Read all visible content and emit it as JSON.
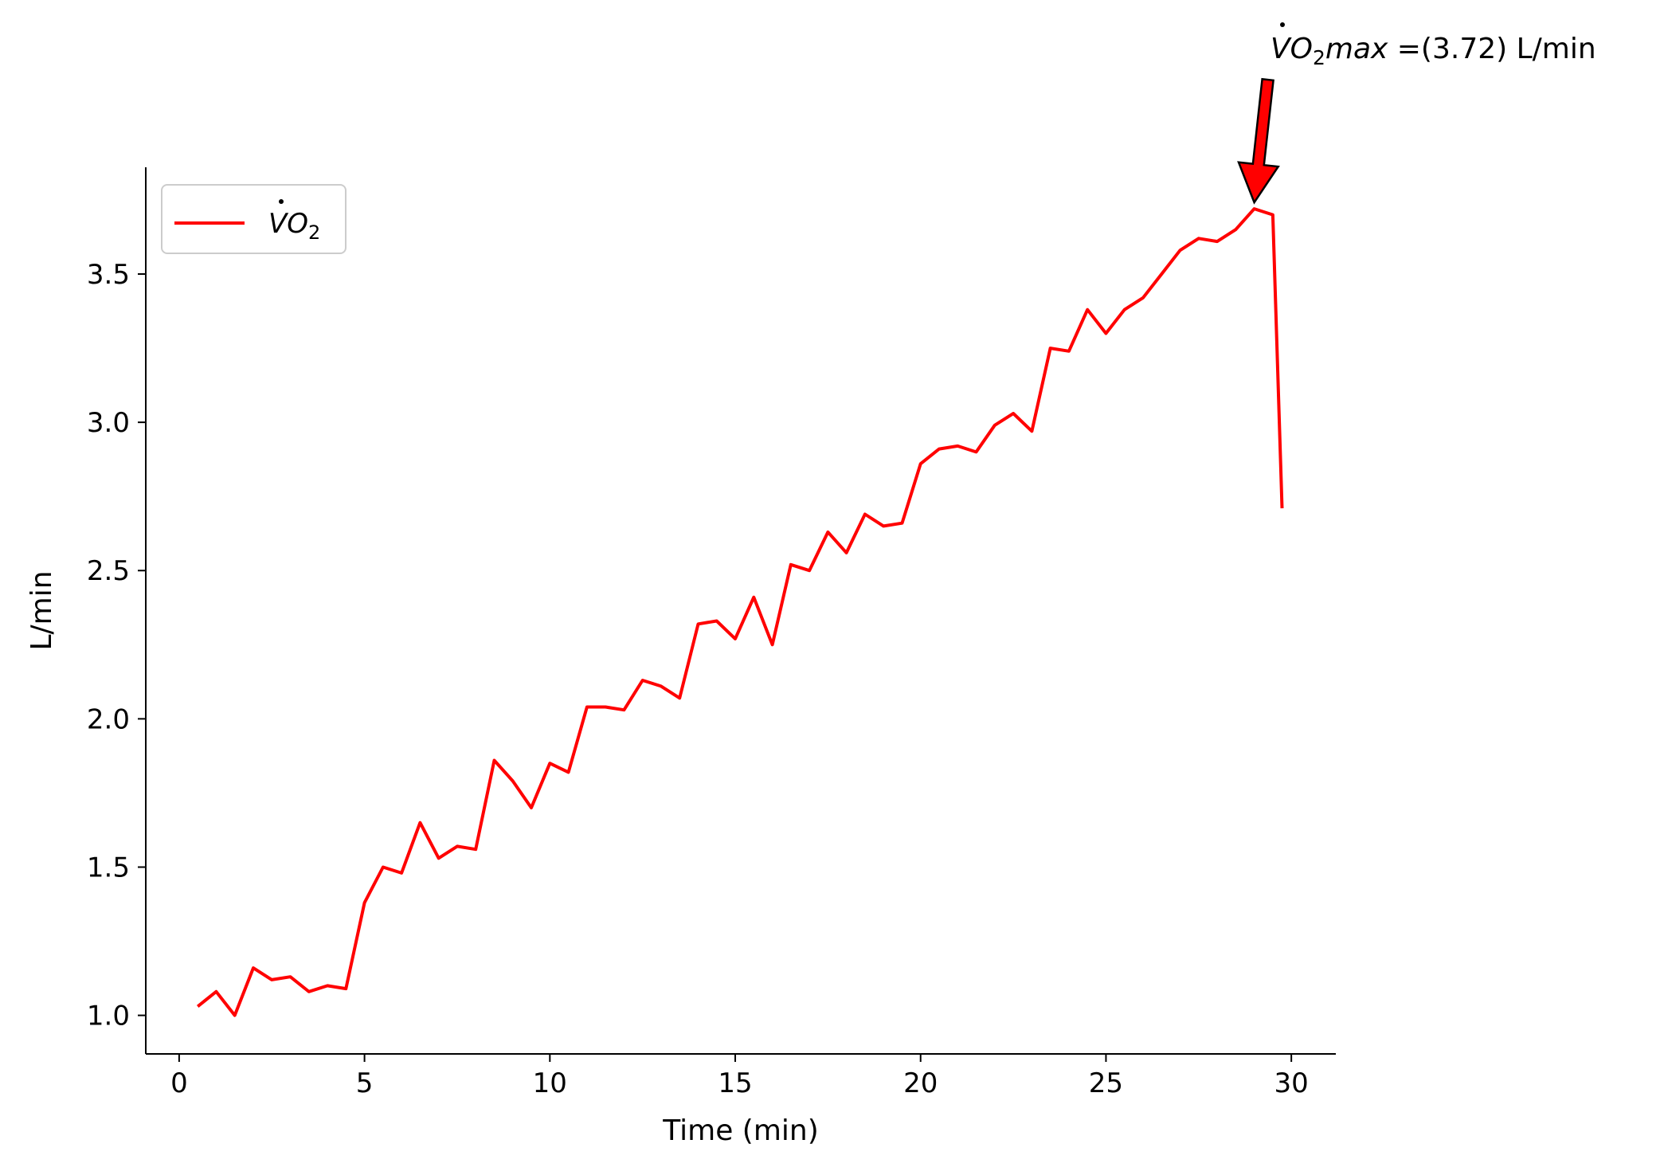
{
  "chart_data": {
    "type": "line",
    "title": "",
    "xlabel": "Time (min)",
    "ylabel": "L/min",
    "xlim": [
      -0.9,
      31.2
    ],
    "ylim": [
      0.87,
      3.86
    ],
    "xticks": [
      0,
      5,
      10,
      15,
      20,
      25,
      30
    ],
    "yticks": [
      1.0,
      1.5,
      2.0,
      2.5,
      3.0,
      3.5
    ],
    "xtick_labels": [
      "0",
      "5",
      "10",
      "15",
      "20",
      "25",
      "30"
    ],
    "ytick_labels": [
      "1.0",
      "1.5",
      "2.0",
      "2.5",
      "3.0",
      "3.5"
    ],
    "grid": false,
    "legend_position": "top-left",
    "colors": {
      "line": "#ff0000",
      "arrow_fill": "#ff0000",
      "arrow_edge": "#000000",
      "axis": "#000000"
    },
    "series": [
      {
        "name": "VO2",
        "legend_label": {
          "base": "V",
          "main": "O",
          "sub": "2"
        },
        "x": [
          0.5,
          1.0,
          1.5,
          2.0,
          2.5,
          3.0,
          3.5,
          4.0,
          4.5,
          5.0,
          5.5,
          6.0,
          6.5,
          7.0,
          7.5,
          8.0,
          8.5,
          9.0,
          9.5,
          10.0,
          10.5,
          11.0,
          11.5,
          12.0,
          12.5,
          13.0,
          13.5,
          14.0,
          14.5,
          15.0,
          15.5,
          16.0,
          16.5,
          17.0,
          17.5,
          18.0,
          18.5,
          19.0,
          19.5,
          20.0,
          20.5,
          21.0,
          21.5,
          22.0,
          22.5,
          23.0,
          23.5,
          24.0,
          24.5,
          25.0,
          25.5,
          26.0,
          26.5,
          27.0,
          27.5,
          28.0,
          28.5,
          29.0,
          29.5,
          29.75
        ],
        "y": [
          1.03,
          1.08,
          1.0,
          1.16,
          1.12,
          1.13,
          1.08,
          1.1,
          1.09,
          1.38,
          1.5,
          1.48,
          1.65,
          1.53,
          1.57,
          1.56,
          1.86,
          1.79,
          1.7,
          1.85,
          1.82,
          2.04,
          2.04,
          2.03,
          2.13,
          2.11,
          2.07,
          2.32,
          2.33,
          2.27,
          2.41,
          2.25,
          2.52,
          2.5,
          2.63,
          2.56,
          2.69,
          2.65,
          2.66,
          2.86,
          2.91,
          2.92,
          2.9,
          2.99,
          3.03,
          2.97,
          3.25,
          3.24,
          3.38,
          3.3,
          3.38,
          3.42,
          3.5,
          3.58,
          3.62,
          3.61,
          3.65,
          3.72,
          3.7,
          2.71
        ]
      }
    ],
    "annotation": {
      "label_base": "V",
      "label_main": "O",
      "label_sub": "2",
      "label_rest": "max",
      "label_suffix": " =(3.72) L/min",
      "point": {
        "x": 29.0,
        "y": 3.72
      }
    }
  }
}
